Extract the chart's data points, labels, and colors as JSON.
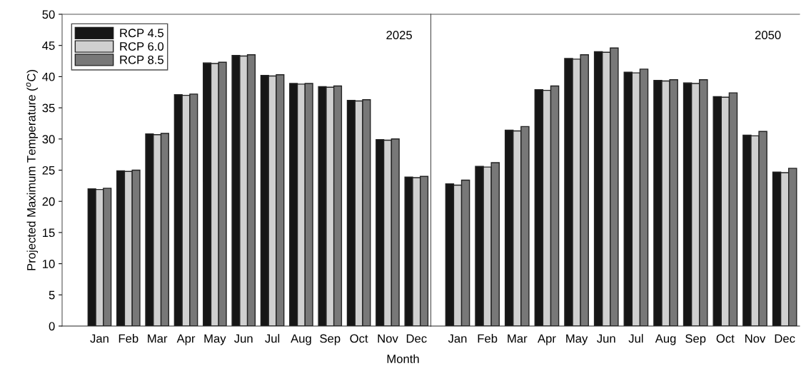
{
  "chart_data": [
    {
      "type": "bar",
      "ylabel": "Projected Maximum Temperature ($^{o}$C)",
      "xlabel": "Month",
      "annotations": [
        "2025"
      ],
      "categories": [
        "Jan",
        "Feb",
        "Mar",
        "Apr",
        "May",
        "Jun",
        "Jul",
        "Aug",
        "Sep",
        "Oct",
        "Nov",
        "Dec"
      ],
      "ylim": [
        0,
        50
      ],
      "yticks": [
        0,
        5,
        10,
        15,
        20,
        25,
        30,
        35,
        40,
        45,
        50
      ],
      "grid": false,
      "legend": "top left",
      "series": [
        {
          "name": "RCP 4.5",
          "color": "#161616",
          "values": [
            22.0,
            24.9,
            30.8,
            37.1,
            42.2,
            43.4,
            40.2,
            38.9,
            38.4,
            36.2,
            29.9,
            23.9
          ]
        },
        {
          "name": "RCP 6.0",
          "color": "#d0d0d0",
          "values": [
            21.9,
            24.8,
            30.7,
            37.0,
            42.1,
            43.3,
            40.1,
            38.8,
            38.3,
            36.1,
            29.8,
            23.8
          ]
        },
        {
          "name": "RCP 8.5",
          "color": "#787878",
          "values": [
            22.1,
            25.0,
            30.9,
            37.2,
            42.3,
            43.5,
            40.3,
            38.9,
            38.5,
            36.3,
            30.0,
            24.0
          ]
        }
      ]
    },
    {
      "type": "bar",
      "annotations": [
        "2050"
      ],
      "categories": [
        "Jan",
        "Feb",
        "Mar",
        "Apr",
        "May",
        "Jun",
        "Jul",
        "Aug",
        "Sep",
        "Oct",
        "Nov",
        "Dec"
      ],
      "ylim": [
        0,
        50
      ],
      "tick_labels": "x",
      "grid": false,
      "series": [
        {
          "color": "#161616",
          "values": [
            22.8,
            25.6,
            31.4,
            37.9,
            42.9,
            44.0,
            40.7,
            39.4,
            39.0,
            36.8,
            30.6,
            24.7
          ]
        },
        {
          "color": "#d0d0d0",
          "values": [
            22.6,
            25.5,
            31.3,
            37.8,
            42.8,
            43.9,
            40.6,
            39.3,
            38.9,
            36.7,
            30.5,
            24.6
          ]
        },
        {
          "color": "#787878",
          "values": [
            23.4,
            26.2,
            32.0,
            38.5,
            43.5,
            44.6,
            41.2,
            39.5,
            39.5,
            37.4,
            31.2,
            25.3
          ]
        }
      ]
    }
  ]
}
